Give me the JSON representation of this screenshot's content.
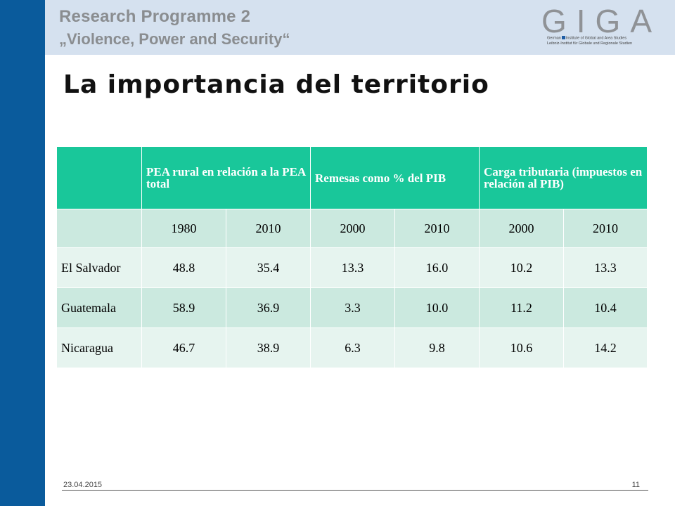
{
  "header": {
    "program_title": "Research Programme 2",
    "program_subtitle": "„Violence, Power and Security“"
  },
  "logo": {
    "letters": "GIGA",
    "line1_a": "German",
    "line1_b": "Institute of Global and Area Studies",
    "line2": "Leibniz-Institut für Globale und Regionale Studien"
  },
  "slide": {
    "title": "La importancia del territorio"
  },
  "table": {
    "headers": [
      "",
      "PEA rural en relación a la PEA total",
      "Remesas como % del PIB",
      "Carga tributaria (impuestos en relación al PIB)"
    ],
    "years": [
      "",
      "1980",
      "2010",
      "2000",
      "2010",
      "2000",
      "2010"
    ],
    "rows": [
      {
        "country": "El Salvador",
        "values": [
          "48.8",
          "35.4",
          "13.3",
          "16.0",
          "10.2",
          "13.3"
        ]
      },
      {
        "country": "Guatemala",
        "values": [
          "58.9",
          "36.9",
          "3.3",
          "10.0",
          "11.2",
          "10.4"
        ]
      },
      {
        "country": "Nicaragua",
        "values": [
          "46.7",
          "38.9",
          "6.3",
          "9.8",
          "10.6",
          "14.2"
        ]
      }
    ]
  },
  "footer": {
    "date": "23.04.2015",
    "page": "11"
  },
  "colors": {
    "sidebar": "#0a5b9c",
    "header_band": "#d5e1ef",
    "table_header": "#19c79a",
    "table_dark": "#cbe9df",
    "table_light": "#e6f4ef"
  }
}
